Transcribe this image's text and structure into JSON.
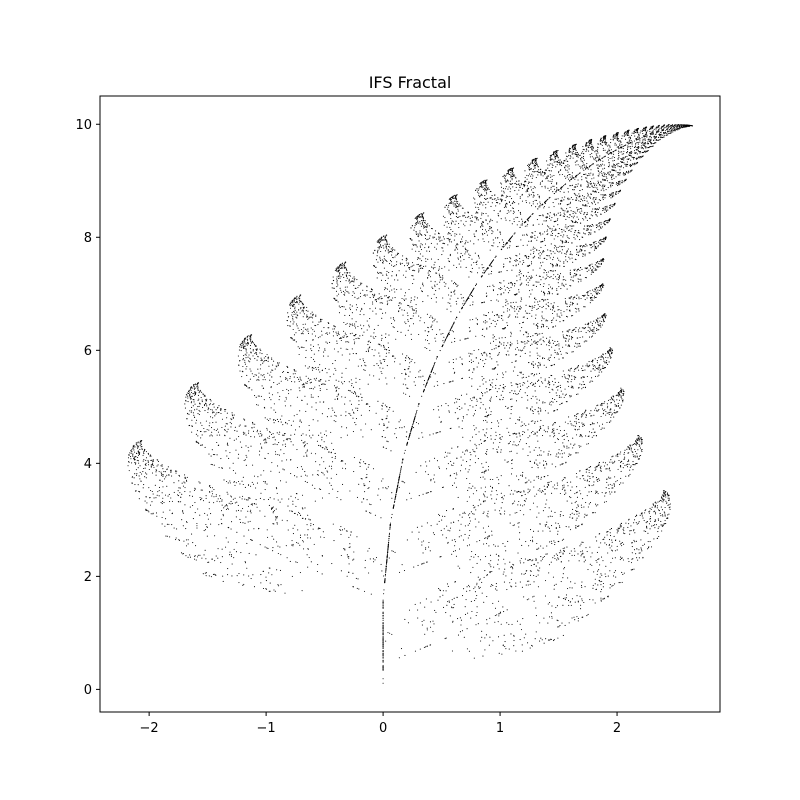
{
  "chart_data": {
    "type": "scatter",
    "title": "IFS Fractal",
    "xlabel": "",
    "ylabel": "",
    "xlim": [
      -2.42,
      2.88
    ],
    "ylim": [
      -0.4,
      10.5
    ],
    "x_ticks": [
      -2,
      -1,
      0,
      1,
      2
    ],
    "y_ticks": [
      0,
      2,
      4,
      6,
      8,
      10
    ],
    "x_tick_labels": [
      "−2",
      "−1",
      "0",
      "1",
      "2"
    ],
    "y_tick_labels": [
      "0",
      "2",
      "4",
      "6",
      "8",
      "10"
    ],
    "grid": false,
    "legend": "none",
    "series": [
      {
        "ifs_transforms": [
          {
            "a": 0.0,
            "b": 0.0,
            "c": 0.0,
            "d": 0.16,
            "e": 0.0,
            "f": 0.0,
            "p": 0.01
          },
          {
            "a": 0.85,
            "b": 0.04,
            "c": -0.04,
            "d": 0.85,
            "e": 0.0,
            "f": 1.6,
            "p": 0.85
          },
          {
            "a": 0.2,
            "b": -0.26,
            "c": 0.23,
            "d": 0.22,
            "e": 0.0,
            "f": 1.6,
            "p": 0.07
          },
          {
            "a": -0.15,
            "b": 0.28,
            "c": 0.26,
            "d": 0.24,
            "e": 0.0,
            "f": 0.44,
            "p": 0.07
          }
        ],
        "point_count": 10000,
        "marker_color": "#000000"
      }
    ]
  }
}
